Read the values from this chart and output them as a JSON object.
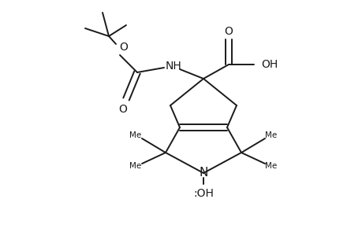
{
  "bg_color": "#ffffff",
  "line_color": "#1a1a1a",
  "line_width": 1.4,
  "figsize": [
    4.6,
    3.0
  ],
  "dpi": 100,
  "xlim": [
    0,
    460
  ],
  "ylim": [
    0,
    300
  ]
}
